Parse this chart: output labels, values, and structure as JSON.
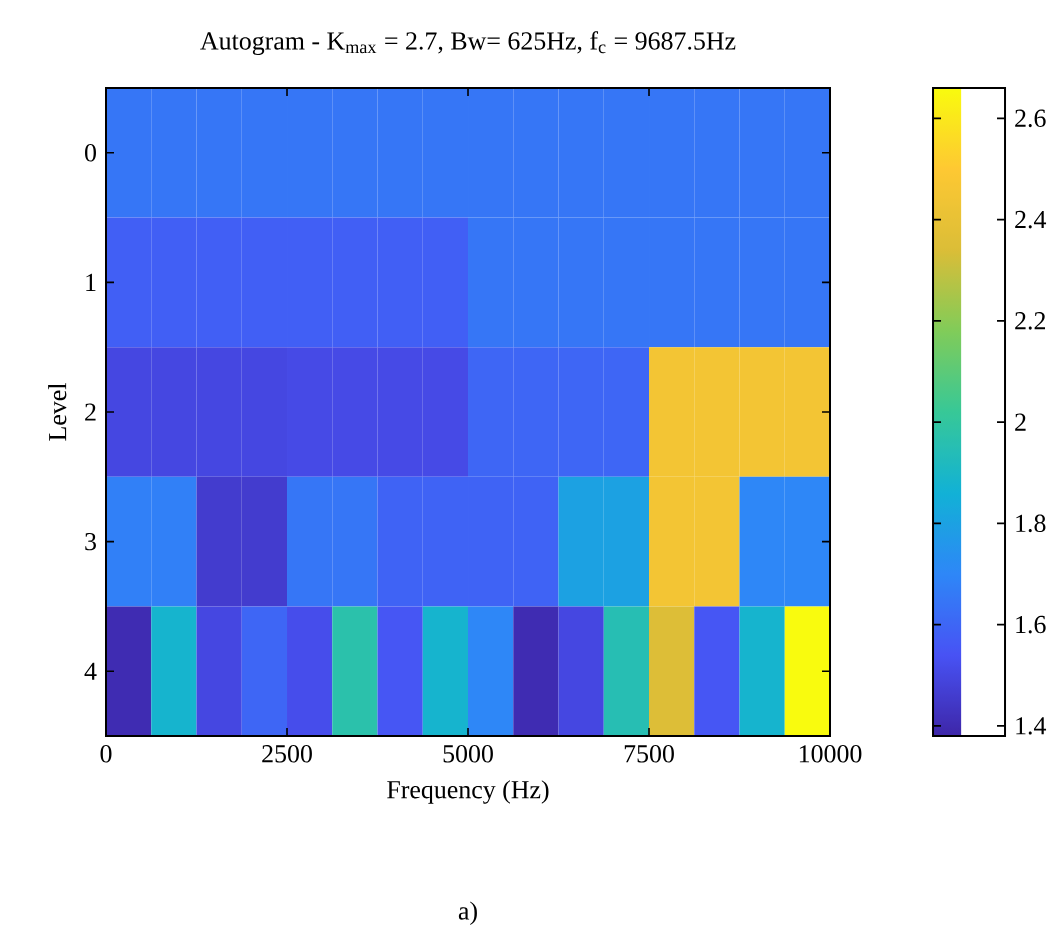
{
  "chart_data": {
    "type": "heatmap",
    "title": "Autogram - K$_{max}$ = 2.7, Bw= 625Hz, f$_{c}$ = 9687.5Hz",
    "xlabel": "Frequency (Hz)",
    "ylabel": "Level",
    "annotations": [
      "a)"
    ],
    "x": [
      312.5,
      937.5,
      1562.5,
      2187.5,
      2812.5,
      3437.5,
      4062.5,
      4687.5,
      5312.5,
      5937.5,
      6562.5,
      7187.5,
      7812.5,
      8437.5,
      9062.5,
      9687.5
    ],
    "xlim": [
      0,
      10000
    ],
    "xticks": [
      0,
      2500,
      5000,
      7500,
      10000
    ],
    "y_categories": [
      "0",
      "1",
      "2",
      "3",
      "4"
    ],
    "cells": [
      [
        1.65,
        1.65,
        1.65,
        1.65,
        1.65,
        1.65,
        1.65,
        1.65,
        1.65,
        1.65,
        1.65,
        1.65,
        1.65,
        1.65,
        1.65,
        1.65
      ],
      [
        1.58,
        1.58,
        1.58,
        1.58,
        1.58,
        1.58,
        1.58,
        1.58,
        1.65,
        1.65,
        1.65,
        1.65,
        1.65,
        1.65,
        1.65,
        1.65
      ],
      [
        1.5,
        1.5,
        1.5,
        1.5,
        1.51,
        1.51,
        1.51,
        1.51,
        1.6,
        1.6,
        1.6,
        1.6,
        2.45,
        2.45,
        2.45,
        2.45
      ],
      [
        1.68,
        1.68,
        1.46,
        1.46,
        1.65,
        1.65,
        1.59,
        1.59,
        1.59,
        1.59,
        1.8,
        1.8,
        2.45,
        2.45,
        1.7,
        1.7
      ],
      [
        1.4,
        1.88,
        1.5,
        1.6,
        1.52,
        1.97,
        1.55,
        1.88,
        1.7,
        1.4,
        1.5,
        1.95,
        2.35,
        1.55,
        1.88,
        2.66
      ]
    ],
    "clim": [
      1.38,
      2.66
    ],
    "cticks": [
      1.4,
      1.6,
      1.8,
      2,
      2.2,
      2.4,
      2.6
    ]
  }
}
